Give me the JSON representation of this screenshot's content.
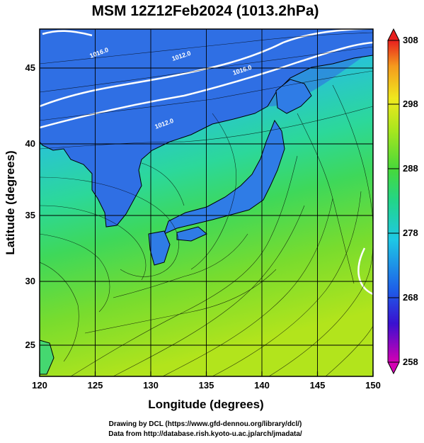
{
  "title": "MSM 12Z12Feb2024 (1013.2hPa)",
  "xlabel": "Longitude (degrees)",
  "ylabel": "Latitude  (degrees)",
  "credits": [
    "Drawing by DCL (https://www.gfd-dennou.org/library/dcl/)",
    "Data from http://database.rish.kyoto-u.ac.jp/arch/jmadata/"
  ],
  "map": {
    "lon_range": [
      120,
      150
    ],
    "lat_range": [
      22.4,
      47.6
    ],
    "lon_ticks": [
      "120",
      "125",
      "130",
      "135",
      "140",
      "145",
      "150"
    ],
    "lat_ticks": [
      "25",
      "30",
      "35",
      "40",
      "45"
    ],
    "grid": true,
    "contour_labels": [
      "1016.0",
      "1012.0",
      "1016.0",
      "1012.0"
    ],
    "colors": {
      "land": "#2f7ce6",
      "coast": "#000000",
      "contour": "#ffffff",
      "streamline": "#000000"
    }
  },
  "colorbar": {
    "ticks": [
      "308",
      "298",
      "288",
      "278",
      "268",
      "258"
    ],
    "range": [
      258,
      308
    ],
    "stops": [
      "#d400b4",
      "#3a10d0",
      "#1e5be8",
      "#1ec8e6",
      "#22d58a",
      "#47d93a",
      "#a8e61e",
      "#f0e81e",
      "#f59a1e",
      "#e8201e"
    ]
  }
}
